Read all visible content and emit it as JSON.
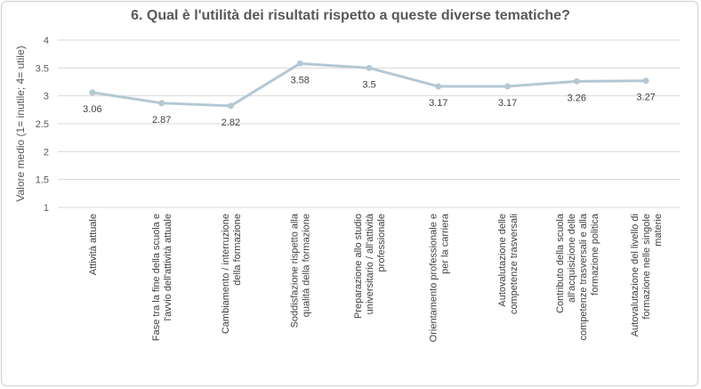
{
  "chart_data": {
    "type": "line",
    "title": "6. Qual è l'utilità dei risultati rispetto a queste diverse tematiche?",
    "ylabel": "Valore medio (1= inutile; 4= utile)",
    "xlabel": "",
    "ylim": [
      1,
      4
    ],
    "yticks": [
      "1",
      "1.5",
      "2",
      "2.5",
      "3",
      "3.5",
      "4"
    ],
    "grid": true,
    "line_color": "#b4c8d2",
    "categories": [
      [
        "Attività attuale"
      ],
      [
        "Fase tra la fine della scuola e",
        "l'avvio dell'attività attuale"
      ],
      [
        "Cambiamento / interruzione",
        "della formazione"
      ],
      [
        "Soddisfazione rispetto alla",
        "qualità della formazione"
      ],
      [
        "Preparazione allo studio",
        "universitario / all'attività",
        "professionale"
      ],
      [
        "Orientamento professionale e",
        "per la carriera"
      ],
      [
        "Autovalutazione delle",
        "competenze trasversali"
      ],
      [
        "Contributo della scuola",
        "all'acquisizione delle",
        "competenze trasversali e alla",
        "formazione politica"
      ],
      [
        "Autovalutazione del livello di",
        "formazione nelle singole",
        "materie"
      ]
    ],
    "values": [
      3.06,
      2.87,
      2.82,
      3.58,
      3.5,
      3.17,
      3.17,
      3.26,
      3.27
    ],
    "data_labels": [
      "3.06",
      "2.87",
      "2.82",
      "3.58",
      "3.5",
      "3.17",
      "3.17",
      "3.26",
      "3.27"
    ]
  }
}
